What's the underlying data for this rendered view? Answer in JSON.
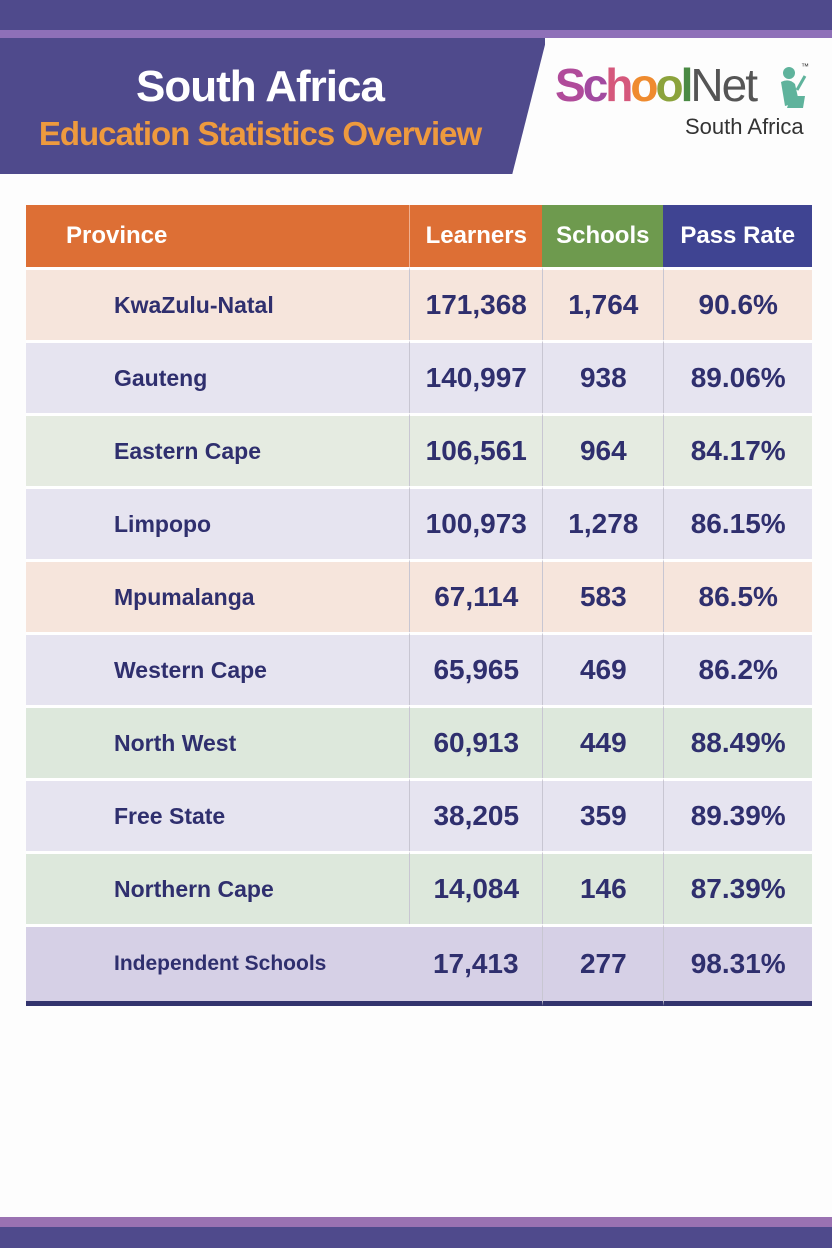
{
  "header": {
    "title": "South Africa",
    "subtitle": "Education Statistics Overview"
  },
  "logo": {
    "letters": [
      "S",
      "c",
      "h",
      "o",
      "o",
      "l",
      "Net"
    ],
    "letter_colors": [
      "#b04b9a",
      "#a24aa0",
      "#d5587c",
      "#ef8b2f",
      "#8ca33c",
      "#4a8a44",
      "#555555"
    ],
    "tagline": "South Africa",
    "tm": "™",
    "icon": "reader-with-laptop-icon"
  },
  "table": {
    "columns": [
      "Province",
      "Learners",
      "Schools",
      "Pass Rate"
    ],
    "rows": [
      {
        "province": "KwaZulu-Natal",
        "learners": "171,368",
        "schools": "1,764",
        "pass_rate": "90.6%"
      },
      {
        "province": "Gauteng",
        "learners": "140,997",
        "schools": "938",
        "pass_rate": "89.06%"
      },
      {
        "province": "Eastern Cape",
        "learners": "106,561",
        "schools": "964",
        "pass_rate": "84.17%"
      },
      {
        "province": "Limpopo",
        "learners": "100,973",
        "schools": "1,278",
        "pass_rate": "86.15%"
      },
      {
        "province": "Mpumalanga",
        "learners": "67,114",
        "schools": "583",
        "pass_rate": "86.5%"
      },
      {
        "province": "Western Cape",
        "learners": "65,965",
        "schools": "469",
        "pass_rate": "86.2%"
      },
      {
        "province": "North West",
        "learners": "60,913",
        "schools": "449",
        "pass_rate": "88.49%"
      },
      {
        "province": "Free State",
        "learners": "38,205",
        "schools": "359",
        "pass_rate": "89.39%"
      },
      {
        "province": "Northern Cape",
        "learners": "14,084",
        "schools": "146",
        "pass_rate": "87.39%"
      },
      {
        "province": "Independent Schools",
        "learners": "17,413",
        "schools": "277",
        "pass_rate": "98.31%"
      }
    ]
  }
}
